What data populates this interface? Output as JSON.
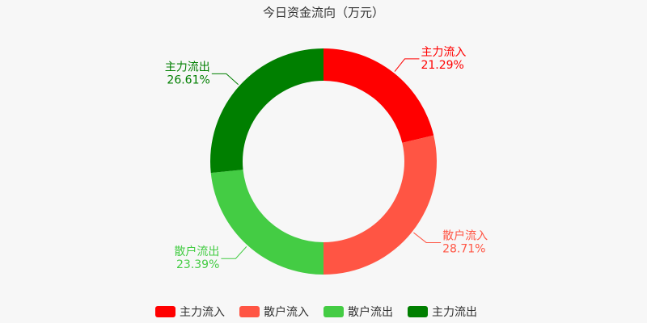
{
  "chart_data": {
    "type": "pie",
    "title": "今日资金流向（万元）",
    "categories": [
      "主力流入",
      "散户流入",
      "散户流出",
      "主力流出"
    ],
    "values": [
      21.29,
      28.71,
      23.39,
      26.61
    ],
    "value_labels": [
      "21.29%",
      "28.71%",
      "23.39%",
      "26.61%"
    ],
    "colors": [
      "#ff0000",
      "#ff5544",
      "#44cc44",
      "#007f00"
    ]
  }
}
